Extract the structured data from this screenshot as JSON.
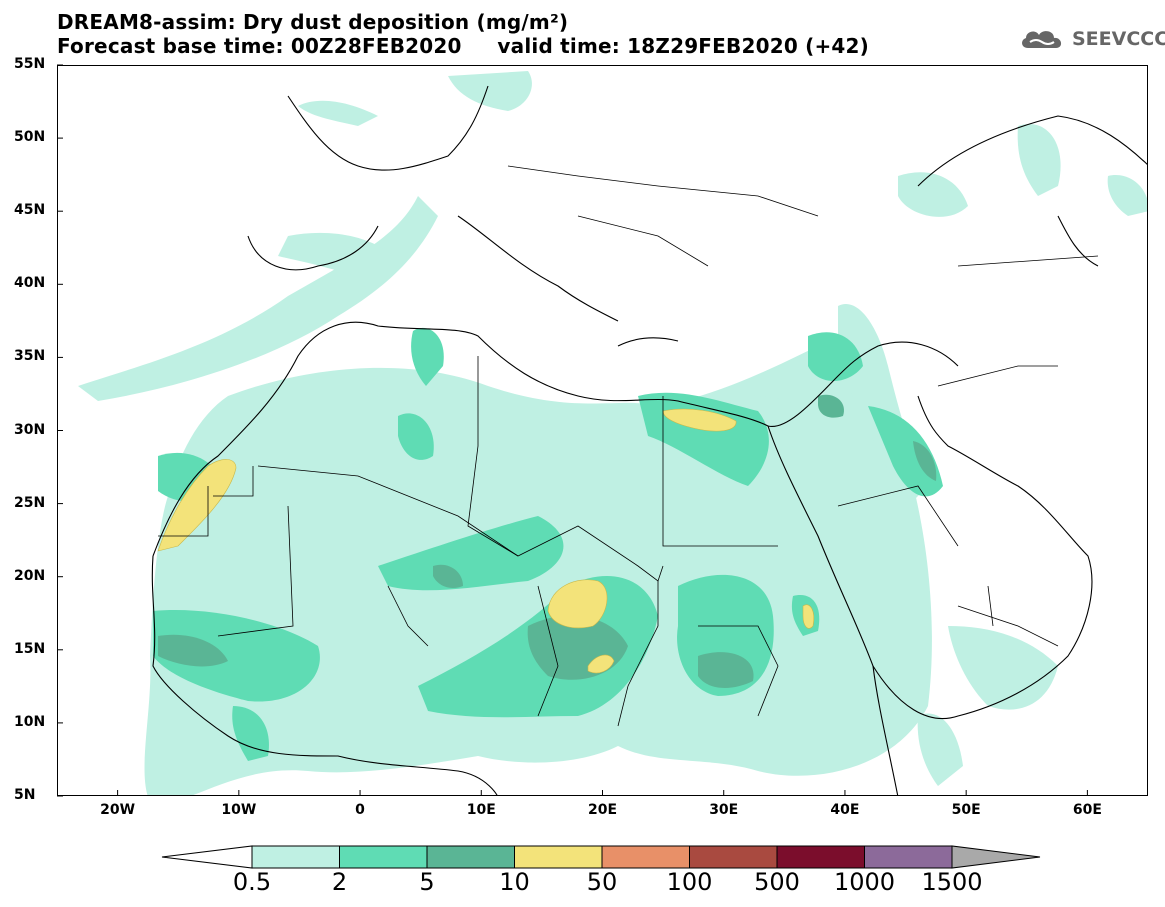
{
  "title": {
    "line1": "DREAM8-assim: Dry dust deposition (mg/m²)",
    "line2": "Forecast base time: 00Z28FEB2020     valid time: 18Z29FEB2020 (+42)"
  },
  "brand": {
    "name": "SEEVCCC",
    "icon": "cloud-logo-icon"
  },
  "lat_labels": [
    "55N",
    "50N",
    "45N",
    "40N",
    "35N",
    "30N",
    "25N",
    "20N",
    "15N",
    "10N",
    "5N"
  ],
  "lon_labels": [
    "20W",
    "10W",
    "0",
    "10E",
    "20E",
    "30E",
    "40E",
    "50E",
    "60E"
  ],
  "legend": {
    "labels": [
      "0.5",
      "2",
      "5",
      "10",
      "50",
      "100",
      "500",
      "1000",
      "1500"
    ],
    "colors": [
      "#bff0e3",
      "#5fdcb4",
      "#5ab595",
      "#f3e37a",
      "#e89068",
      "#a94a40",
      "#7b0d2c",
      "#8c6a9a",
      "#a9a9a9"
    ],
    "under_color": "#ffffff",
    "over_color": "#a9a9a9"
  },
  "map": {
    "region": "North Africa, Europe and Middle East",
    "lon_range": [
      -25,
      65
    ],
    "lat_range": [
      5,
      55
    ],
    "water_color": "#ffffff",
    "line_color": "#000000"
  }
}
